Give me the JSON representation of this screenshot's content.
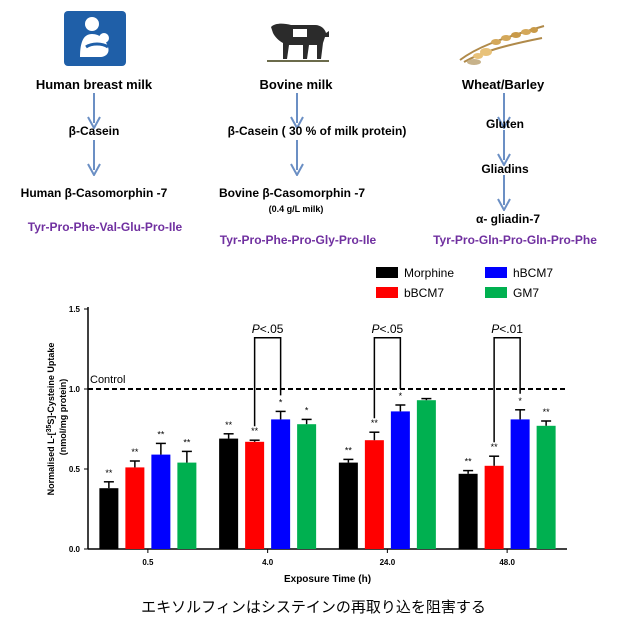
{
  "flow": {
    "human": {
      "title": "Human breast milk",
      "protein": "β-Casein",
      "peptide": "Human β-Casomorphin -7",
      "sequence": "Tyr-Pro-Phe-Val-Glu-Pro-Ile",
      "icon": "breastfeeding-mother-icon",
      "icon_color": "#1f5fa8"
    },
    "bovine": {
      "title": "Bovine milk",
      "protein": "β-Casein ( 30 % of milk protein)",
      "peptide": "Bovine β-Casomorphin -7",
      "amount": "(0.4 g/L  milk)",
      "sequence": "Tyr-Pro-Phe-Pro-Gly-Pro-Ile",
      "icon": "cow-icon"
    },
    "wheat": {
      "title": "Wheat/Barley",
      "protein": "Gluten",
      "fraction": "Gliadins",
      "peptide": "α- gliadin-7",
      "sequence": "Tyr-Pro-Gln-Pro-Gln-Pro-Phe",
      "icon": "wheat-grain-icon"
    },
    "arrow_color": "#6b8fc4",
    "sequence_color": "#7030a0"
  },
  "chart_data": {
    "type": "bar",
    "categories": [
      "0.5",
      "4.0",
      "24.0",
      "48.0"
    ],
    "xlabel": "Exposure Time (h)",
    "ylabel_parts": [
      "Normalised L-[",
      "35",
      "S]-Cysteine Uptake"
    ],
    "ylabel_line2": "(nmol/mg protein)",
    "ylim": [
      0,
      1.5
    ],
    "yticks": [
      "0.0",
      "0.5",
      "1.0",
      "1.5"
    ],
    "control_value": 1.0,
    "control_label": "Control",
    "legend_position": "top-right",
    "series": [
      {
        "name": "Morphine",
        "color": "#000000",
        "values": [
          0.38,
          0.69,
          0.54,
          0.47
        ],
        "errors": [
          0.04,
          0.03,
          0.02,
          0.02
        ],
        "marks": [
          "**",
          "**",
          "**",
          "**"
        ]
      },
      {
        "name": "bBCM7",
        "color": "#ff0000",
        "values": [
          0.51,
          0.67,
          0.68,
          0.52
        ],
        "errors": [
          0.04,
          0.01,
          0.05,
          0.06
        ],
        "marks": [
          "**",
          "**",
          "**",
          "**"
        ]
      },
      {
        "name": "hBCM7",
        "color": "#0000ff",
        "values": [
          0.59,
          0.81,
          0.86,
          0.81
        ],
        "errors": [
          0.07,
          0.05,
          0.04,
          0.06
        ],
        "marks": [
          "**",
          "*",
          "*",
          "*"
        ]
      },
      {
        "name": "GM7",
        "color": "#00b050",
        "values": [
          0.54,
          0.78,
          0.93,
          0.77
        ],
        "errors": [
          0.07,
          0.03,
          0.01,
          0.03
        ],
        "marks": [
          "**",
          "*",
          "",
          "**"
        ]
      }
    ],
    "comparisons": [
      {
        "category": "4.0",
        "from": "bBCM7",
        "to": "hBCM7",
        "p_prefix": "P",
        "p_value": "<.05"
      },
      {
        "category": "24.0",
        "from": "bBCM7",
        "to": "hBCM7",
        "p_prefix": "P",
        "p_value": "<.05"
      },
      {
        "category": "48.0",
        "from": "bBCM7",
        "to": "hBCM7",
        "p_prefix": "P",
        "p_value": "<.01"
      }
    ]
  },
  "caption": "エキソルフィンはシステインの再取り込を阻害する"
}
